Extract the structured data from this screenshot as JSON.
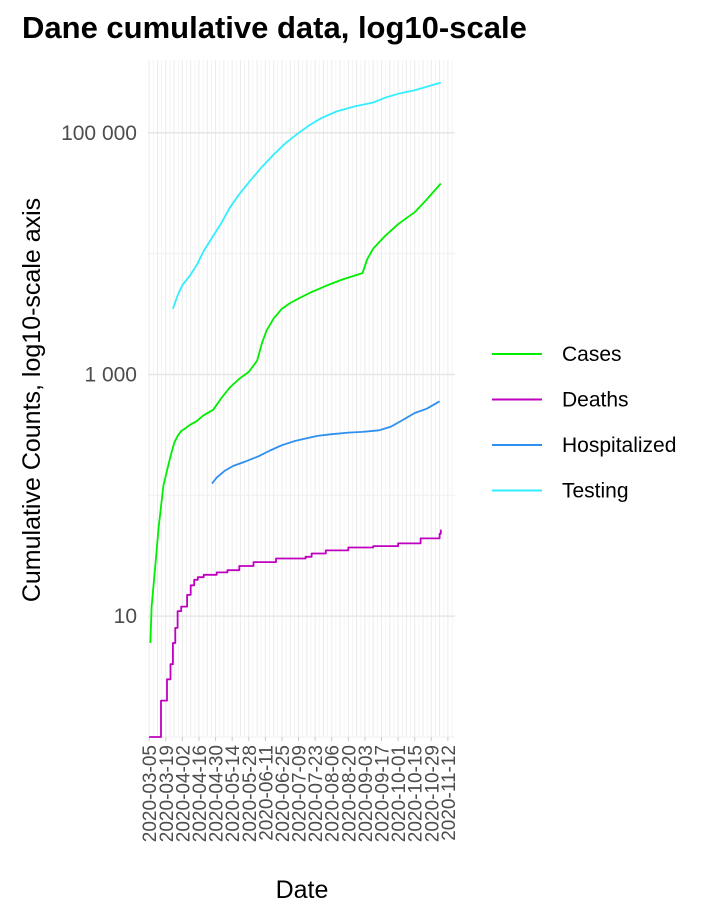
{
  "chart_data": {
    "type": "line",
    "title": "Dane cumulative data, log10-scale",
    "xlabel": "Date",
    "ylabel": "Cumulative Counts, log10-scale axis",
    "y_scale": "log10",
    "ylim": [
      1,
      400000
    ],
    "xlim": [
      "2020-03-05",
      "2020-11-15"
    ],
    "y_ticks": [
      {
        "value": 10,
        "label": "10"
      },
      {
        "value": 1000,
        "label": "1 000"
      },
      {
        "value": 100000,
        "label": "100 000"
      }
    ],
    "x_ticks": [
      "2020-03-05",
      "2020-03-19",
      "2020-04-02",
      "2020-04-16",
      "2020-04-30",
      "2020-05-14",
      "2020-05-28",
      "2020-06-11",
      "2020-06-25",
      "2020-07-09",
      "2020-07-23",
      "2020-08-06",
      "2020-08-20",
      "2020-09-03",
      "2020-09-17",
      "2020-10-01",
      "2020-10-15",
      "2020-10-29",
      "2020-11-12"
    ],
    "grid": true,
    "legend_position": "right",
    "series": [
      {
        "name": "Cases",
        "color": "#00ee00",
        "step": false,
        "x": [
          "2020-03-06",
          "2020-03-07",
          "2020-03-10",
          "2020-03-13",
          "2020-03-17",
          "2020-03-20",
          "2020-03-23",
          "2020-03-26",
          "2020-03-29",
          "2020-04-01",
          "2020-04-04",
          "2020-04-08",
          "2020-04-14",
          "2020-04-20",
          "2020-04-28",
          "2020-05-05",
          "2020-05-12",
          "2020-05-20",
          "2020-05-28",
          "2020-06-04",
          "2020-06-08",
          "2020-06-12",
          "2020-06-18",
          "2020-06-25",
          "2020-07-02",
          "2020-07-10",
          "2020-07-20",
          "2020-08-01",
          "2020-08-15",
          "2020-09-01",
          "2020-09-05",
          "2020-09-10",
          "2020-09-20",
          "2020-10-01",
          "2020-10-15",
          "2020-10-25",
          "2020-11-06"
        ],
        "y": [
          6,
          12,
          25,
          55,
          120,
          160,
          210,
          270,
          310,
          340,
          355,
          380,
          410,
          460,
          510,
          640,
          780,
          920,
          1050,
          1300,
          1800,
          2300,
          2900,
          3500,
          3900,
          4300,
          4800,
          5400,
          6100,
          6900,
          9000,
          11000,
          14000,
          17500,
          22000,
          28000,
          38000
        ]
      },
      {
        "name": "Deaths",
        "color": "#c000c0",
        "step": true,
        "x": [
          "2020-03-05",
          "2020-03-15",
          "2020-03-20",
          "2020-03-23",
          "2020-03-25",
          "2020-03-27",
          "2020-03-29",
          "2020-04-01",
          "2020-04-06",
          "2020-04-09",
          "2020-04-12",
          "2020-04-15",
          "2020-04-20",
          "2020-05-01",
          "2020-05-10",
          "2020-05-20",
          "2020-06-01",
          "2020-06-20",
          "2020-07-15",
          "2020-07-20",
          "2020-08-01",
          "2020-08-20",
          "2020-09-10",
          "2020-10-01",
          "2020-10-20",
          "2020-11-05",
          "2020-11-06"
        ],
        "y": [
          1,
          2,
          3,
          4,
          6,
          8,
          11,
          12,
          15,
          18,
          20,
          21,
          22,
          23,
          24,
          26,
          28,
          30,
          31,
          33,
          35,
          37,
          38,
          40,
          44,
          48,
          52
        ]
      },
      {
        "name": "Hospitalized",
        "color": "#2f8fee",
        "step": false,
        "x": [
          "2020-04-27",
          "2020-05-01",
          "2020-05-08",
          "2020-05-15",
          "2020-05-25",
          "2020-06-05",
          "2020-06-15",
          "2020-06-25",
          "2020-07-05",
          "2020-07-15",
          "2020-07-25",
          "2020-08-05",
          "2020-08-20",
          "2020-09-01",
          "2020-09-15",
          "2020-09-25",
          "2020-10-05",
          "2020-10-15",
          "2020-10-25",
          "2020-11-05"
        ],
        "y": [
          125,
          140,
          160,
          175,
          190,
          210,
          235,
          260,
          280,
          295,
          310,
          320,
          330,
          335,
          345,
          370,
          420,
          480,
          520,
          600
        ]
      },
      {
        "name": "Testing",
        "color": "#33eeff",
        "step": false,
        "x": [
          "2020-03-25",
          "2020-03-29",
          "2020-04-02",
          "2020-04-08",
          "2020-04-14",
          "2020-04-20",
          "2020-04-28",
          "2020-05-05",
          "2020-05-12",
          "2020-05-20",
          "2020-05-30",
          "2020-06-08",
          "2020-06-18",
          "2020-06-28",
          "2020-07-08",
          "2020-07-18",
          "2020-07-28",
          "2020-08-10",
          "2020-08-25",
          "2020-09-10",
          "2020-09-20",
          "2020-10-01",
          "2020-10-15",
          "2020-10-25",
          "2020-11-06"
        ],
        "y": [
          3500,
          4500,
          5500,
          6500,
          8000,
          10500,
          14000,
          18000,
          24000,
          31000,
          41000,
          52000,
          66000,
          82000,
          98000,
          115000,
          132000,
          150000,
          165000,
          178000,
          195000,
          210000,
          225000,
          240000,
          260000
        ]
      }
    ]
  }
}
